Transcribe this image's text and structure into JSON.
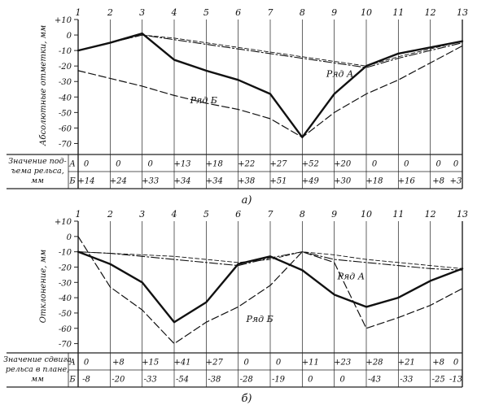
{
  "chart_data": [
    {
      "type": "line",
      "panel_label": "а)",
      "ylabel": "Абсолютные отметки, мм",
      "table_label_lines": [
        "Значение под-",
        "ъема рельса,",
        "мм"
      ],
      "row_labels": [
        "А",
        "Б"
      ],
      "x": [
        1,
        2,
        3,
        4,
        5,
        6,
        7,
        8,
        9,
        10,
        11,
        12,
        13
      ],
      "x_tick_labels": [
        "1",
        "2",
        "3",
        "4",
        "5",
        "6",
        "7",
        "8",
        "9",
        "10",
        "11",
        "12",
        "13"
      ],
      "y_ticks": [
        10,
        0,
        -10,
        -20,
        -30,
        -40,
        -50,
        -60,
        -70
      ],
      "y_tick_labels": [
        "+10",
        "0",
        "-10",
        "-20",
        "-30",
        "-40",
        "-50",
        "-60",
        "-70"
      ],
      "ylim": [
        -75,
        10
      ],
      "series": [
        {
          "name": "Ряд А",
          "style": "solid-heavy",
          "values": [
            -10,
            -5,
            1,
            -16,
            -23,
            -29,
            -38,
            -66,
            -38,
            -20,
            -12,
            -8,
            -4
          ]
        },
        {
          "name": "Ряд Б",
          "style": "dashed",
          "values": [
            -23,
            -28,
            -33,
            -39,
            -44,
            -48,
            -54,
            -66,
            -50,
            -38,
            -29,
            -18,
            -7
          ]
        },
        {
          "name": "",
          "style": "dash-dot",
          "values": [
            -10,
            -5,
            0,
            -3,
            -6,
            -9,
            -12,
            -15,
            -18,
            -21,
            -15,
            -10,
            -5
          ]
        },
        {
          "name": "",
          "style": "dashed-thin",
          "values": [
            -10,
            -5,
            0,
            -2,
            -5,
            -8,
            -11,
            -14,
            -17,
            -20,
            -14,
            -9,
            -4
          ]
        }
      ],
      "table_rows": [
        [
          "0",
          "0",
          "0",
          "+13",
          "+18",
          "+22",
          "+27",
          "+52",
          "+20",
          "0",
          "0",
          "0",
          "0"
        ],
        [
          "+14",
          "+24",
          "+33",
          "+34",
          "+34",
          "+38",
          "+51",
          "+49",
          "+30",
          "+18",
          "+16",
          "+8",
          "+3"
        ]
      ],
      "annotations": [
        {
          "text": "Ряд А",
          "x": 8.75,
          "y": -27
        },
        {
          "text": "Ряд Б",
          "x": 4.5,
          "y": -44
        }
      ]
    },
    {
      "type": "line",
      "panel_label": "б)",
      "ylabel": "Отклонение, мм",
      "table_label_lines": [
        "Значение сдвига",
        "рельса в плане,",
        "мм"
      ],
      "row_labels": [
        "А",
        "Б"
      ],
      "x": [
        1,
        2,
        3,
        4,
        5,
        6,
        7,
        8,
        9,
        10,
        11,
        12,
        13
      ],
      "x_tick_labels": [
        "1",
        "2",
        "3",
        "4",
        "5",
        "6",
        "7",
        "8",
        "9",
        "10",
        "11",
        "12",
        "13"
      ],
      "y_ticks": [
        10,
        0,
        -10,
        -20,
        -30,
        -40,
        -50,
        -60,
        -70
      ],
      "y_tick_labels": [
        "+10",
        "0",
        "-10",
        "-20",
        "-30",
        "-40",
        "-50",
        "-60",
        "-70"
      ],
      "ylim": [
        -75,
        10
      ],
      "series": [
        {
          "name": "Ряд А",
          "style": "solid-heavy",
          "values": [
            -10,
            -18,
            -30,
            -56,
            -43,
            -18,
            -13,
            -22,
            -38,
            -46,
            -40,
            -29,
            -21
          ]
        },
        {
          "name": "Ряд Б",
          "style": "dashed",
          "values": [
            0,
            -33,
            -48,
            -70,
            -56,
            -46,
            -32,
            -10,
            -17,
            -60,
            -53,
            -45,
            -34
          ]
        },
        {
          "name": "",
          "style": "dash-dot",
          "values": [
            -10,
            -11,
            -13,
            -15,
            -17,
            -19,
            -14,
            -10,
            -15,
            -17,
            -19,
            -21,
            -22
          ]
        },
        {
          "name": "",
          "style": "dashed-thin",
          "values": [
            -10,
            -11,
            -12,
            -13,
            -15,
            -17,
            -15,
            -10,
            -12,
            -15,
            -17,
            -19,
            -21
          ]
        }
      ],
      "table_rows": [
        [
          "0",
          "+8",
          "+15",
          "+41",
          "+27",
          "0",
          "0",
          "+11",
          "+23",
          "+28",
          "+21",
          "+8",
          "0"
        ],
        [
          "-8",
          "-20",
          "-33",
          "-54",
          "-38",
          "-28",
          "-19",
          "0",
          "0",
          "-43",
          "-33",
          "-25",
          "-13"
        ]
      ],
      "annotations": [
        {
          "text": "Ряд А",
          "x": 9.1,
          "y": -28
        },
        {
          "text": "Ряд Б",
          "x": 6.25,
          "y": -56
        }
      ]
    }
  ]
}
